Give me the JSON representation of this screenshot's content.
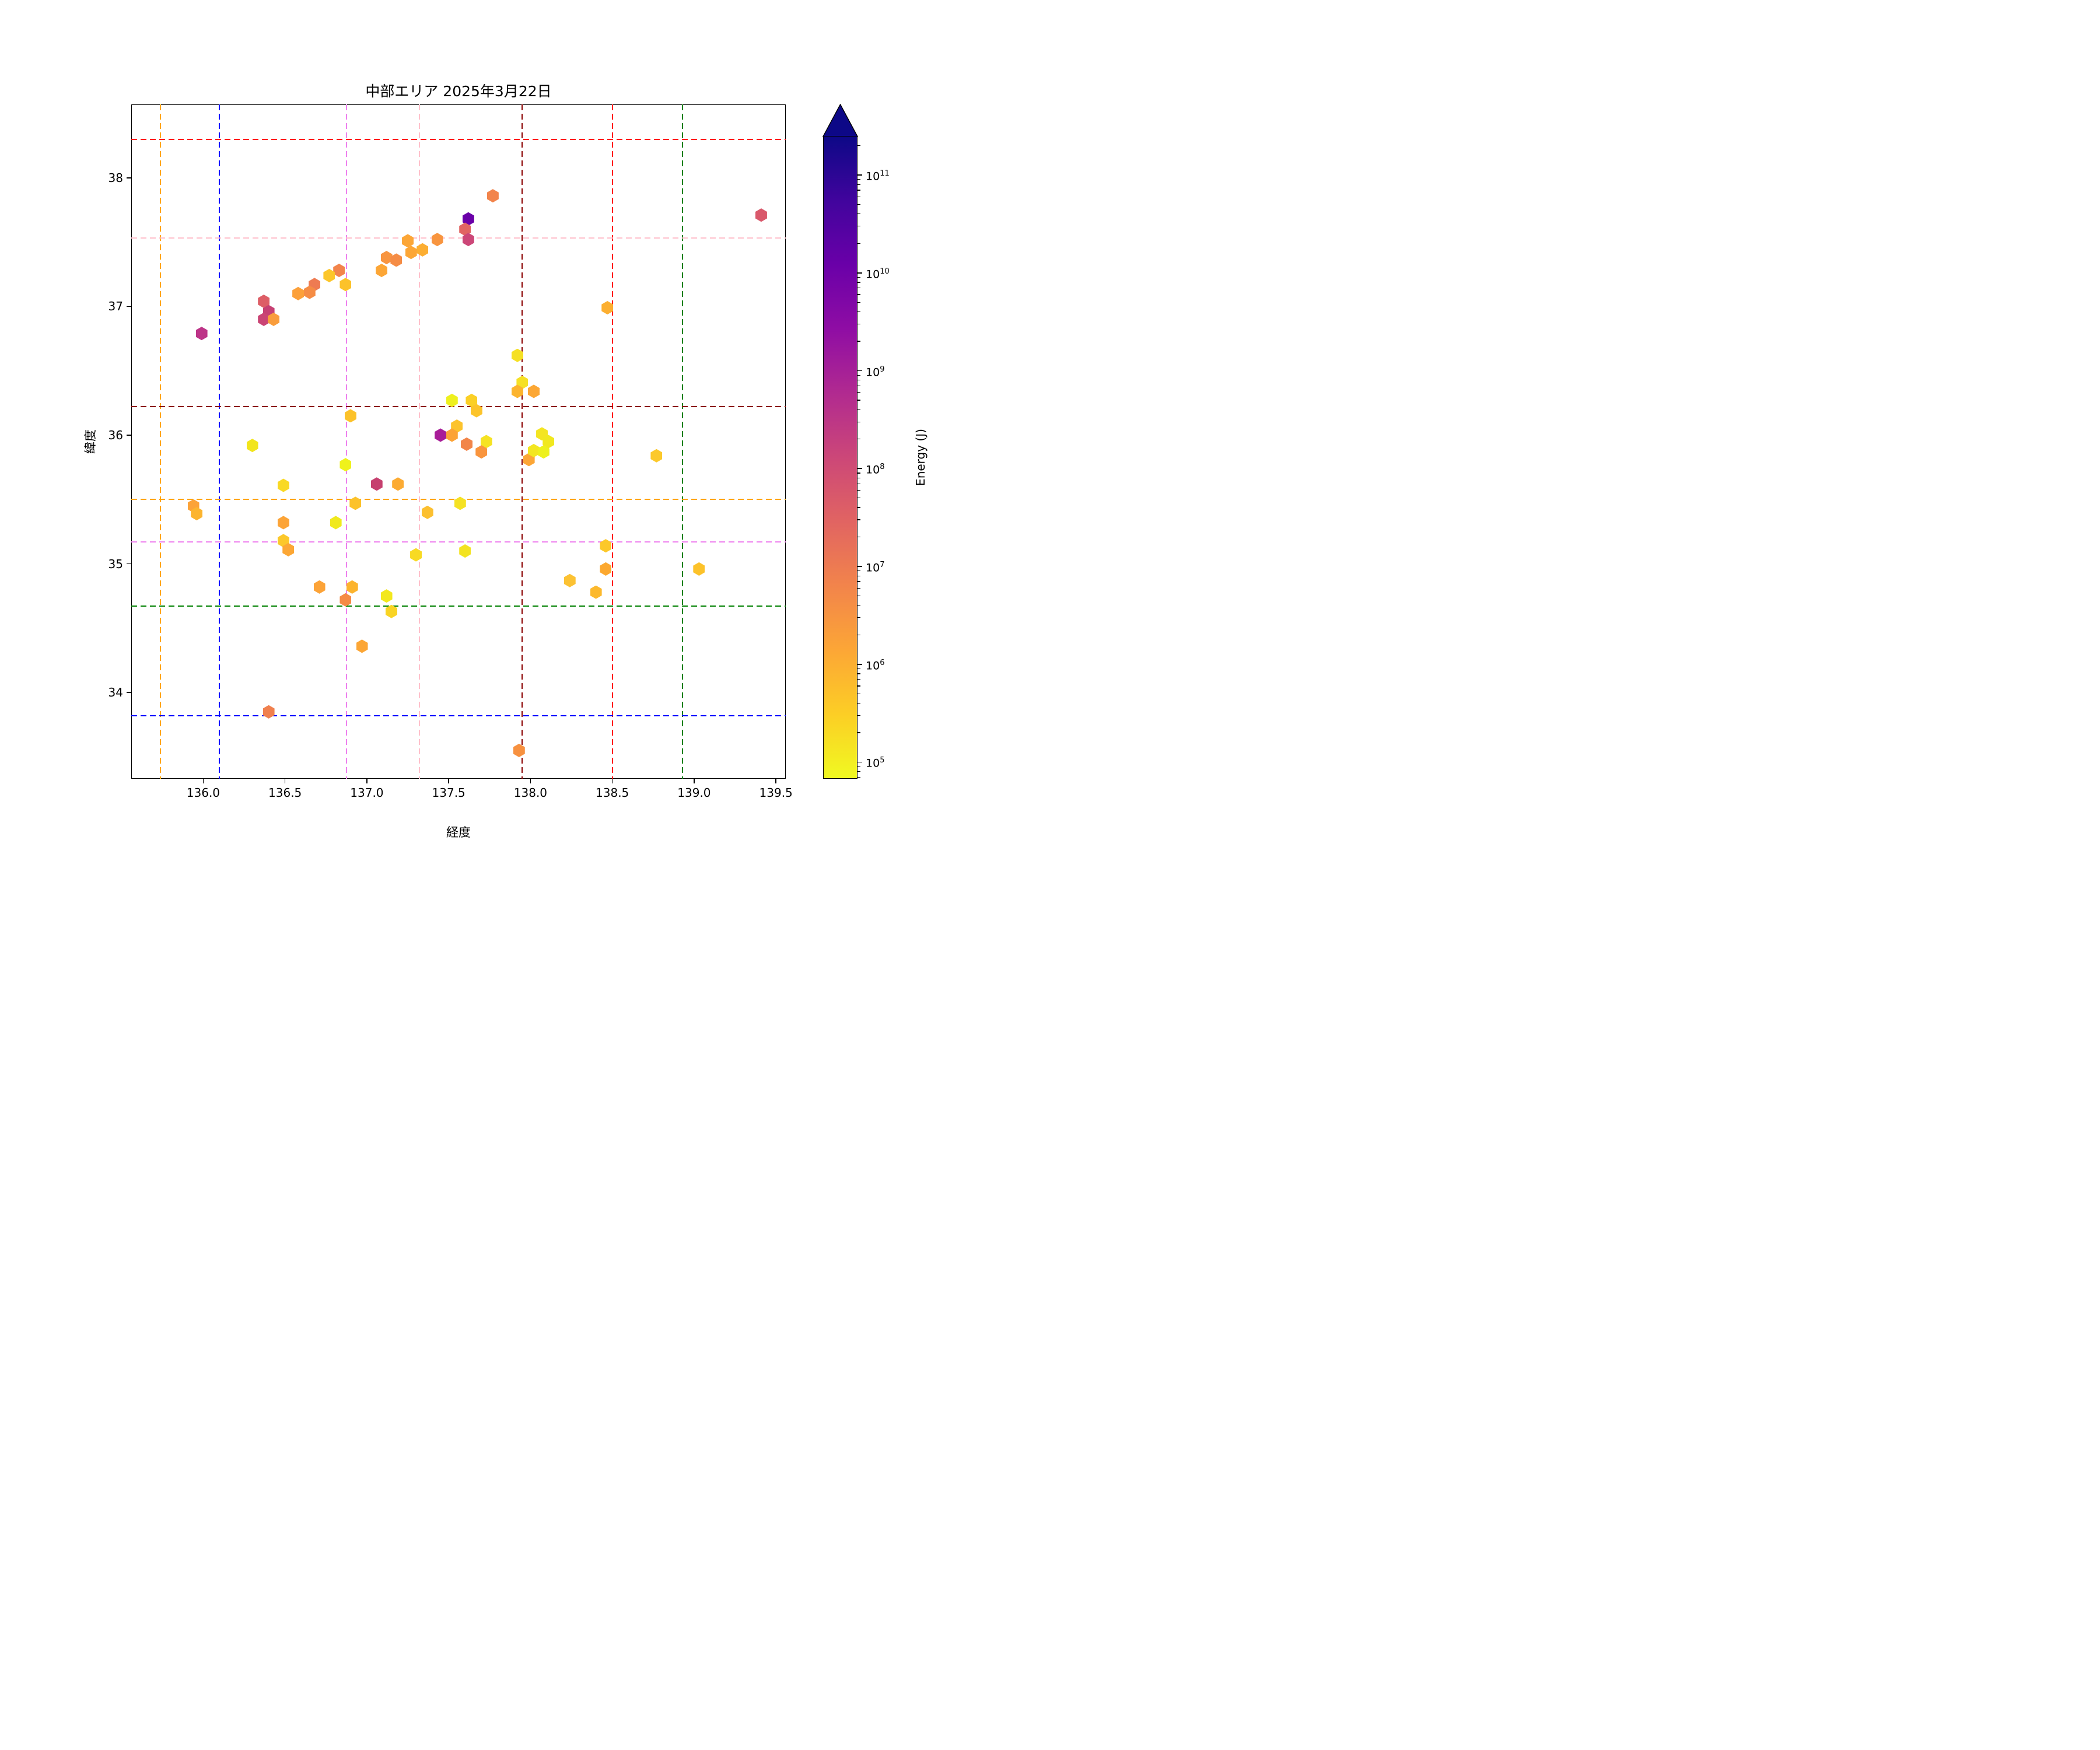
{
  "title": "中部エリア 2025年3月22日",
  "chart_data": {
    "type": "scatter",
    "marker": "hexagon",
    "title": "中部エリア 2025年3月22日",
    "xlabel": "経度",
    "ylabel": "緯度",
    "xlim": [
      135.56,
      139.56
    ],
    "ylim": [
      33.33,
      38.57
    ],
    "xticks": [
      "136.0",
      "136.5",
      "137.0",
      "137.5",
      "138.0",
      "138.5",
      "139.0",
      "139.5"
    ],
    "xtick_values": [
      136.0,
      136.5,
      137.0,
      137.5,
      138.0,
      138.5,
      139.0,
      139.5
    ],
    "yticks": [
      "34",
      "35",
      "36",
      "37",
      "38"
    ],
    "ytick_values": [
      34,
      35,
      36,
      37,
      38
    ],
    "grid": false,
    "colorbar": {
      "label": "Energy (J)",
      "scale": "log",
      "log_min": 4.83,
      "log_max": 11.4,
      "tick_exponents": [
        5,
        6,
        7,
        8,
        9,
        10,
        11
      ],
      "extend": "max",
      "colormap_name": "plasma_r (yellow = low, dark navy = high)",
      "colormap_stops_top_to_bottom": [
        "#0d0887",
        "#41049d",
        "#6a00a8",
        "#8f0da4",
        "#b12a90",
        "#cc4778",
        "#e16462",
        "#f2844b",
        "#fca636",
        "#fcce25",
        "#f0f921"
      ]
    },
    "reference_lines": {
      "style": "dashed",
      "vertical": [
        {
          "color": "orange",
          "hex": "#ffa500",
          "lon": 135.74
        },
        {
          "color": "blue",
          "hex": "#0000ff",
          "lon": 136.1
        },
        {
          "color": "violet",
          "hex": "#ee82ee",
          "lon": 136.875
        },
        {
          "color": "pink",
          "hex": "#ffc0cb",
          "lon": 137.32
        },
        {
          "color": "darkred",
          "hex": "#8b0000",
          "lon": 137.95
        },
        {
          "color": "red",
          "hex": "#ff0000",
          "lon": 138.5
        },
        {
          "color": "green",
          "hex": "#008000",
          "lon": 138.93
        }
      ],
      "horizontal": [
        {
          "color": "red",
          "hex": "#ff0000",
          "lat": 38.3
        },
        {
          "color": "pink",
          "hex": "#ffc0cb",
          "lat": 37.53
        },
        {
          "color": "darkred",
          "hex": "#8b0000",
          "lat": 36.22
        },
        {
          "color": "orange",
          "hex": "#ffa500",
          "lat": 35.5
        },
        {
          "color": "violet",
          "hex": "#ee82ee",
          "lat": 35.17
        },
        {
          "color": "green",
          "hex": "#008000",
          "lat": 34.67
        },
        {
          "color": "blue",
          "hex": "#0000ff",
          "lat": 33.82
        }
      ]
    },
    "points_format": [
      "longitude",
      "latitude",
      "marker_color",
      "energy_J"
    ],
    "points": [
      [
        137.77,
        37.86,
        "#f2844b",
        7000000.0
      ],
      [
        137.62,
        37.68,
        "#6a00a8",
        12000000000.0
      ],
      [
        137.6,
        37.6,
        "#e16462",
        30000000.0
      ],
      [
        137.62,
        37.52,
        "#cc4778",
        140000000.0
      ],
      [
        137.43,
        37.52,
        "#f8953f",
        3000000.0
      ],
      [
        137.25,
        37.51,
        "#fca636",
        1500000.0
      ],
      [
        137.34,
        37.44,
        "#fcae32",
        1000000.0
      ],
      [
        137.27,
        37.42,
        "#fca636",
        1500000.0
      ],
      [
        137.12,
        37.38,
        "#f89540",
        3000000.0
      ],
      [
        137.18,
        37.36,
        "#f58c45",
        5000000.0
      ],
      [
        137.09,
        37.28,
        "#fca636",
        1500000.0
      ],
      [
        136.83,
        37.28,
        "#f2844b",
        7000000.0
      ],
      [
        136.77,
        37.24,
        "#fcc62a",
        450000.0
      ],
      [
        136.87,
        37.17,
        "#fcc22a",
        500000.0
      ],
      [
        136.68,
        37.17,
        "#ee7b52",
        10000000.0
      ],
      [
        136.65,
        37.11,
        "#f58c45",
        5000000.0
      ],
      [
        136.58,
        37.1,
        "#fca03a",
        2000000.0
      ],
      [
        136.37,
        37.04,
        "#dd5e66",
        40000000.0
      ],
      [
        136.4,
        36.96,
        "#c64073",
        240000000.0
      ],
      [
        136.37,
        36.9,
        "#ca4474",
        200000000.0
      ],
      [
        136.43,
        36.9,
        "#f99d3c",
        2200000.0
      ],
      [
        135.99,
        36.79,
        "#bd3488",
        400000000.0
      ],
      [
        139.41,
        37.71,
        "#d9586b",
        55000000.0
      ],
      [
        138.47,
        36.99,
        "#fcaf31",
        900000.0
      ],
      [
        137.92,
        36.62,
        "#f5e024",
        200000.0
      ],
      [
        137.95,
        36.41,
        "#f6e125",
        190000.0
      ],
      [
        137.92,
        36.34,
        "#fcb42e",
        800000.0
      ],
      [
        138.02,
        36.34,
        "#fca734",
        1400000.0
      ],
      [
        137.52,
        36.27,
        "#eef01e",
        110000.0
      ],
      [
        137.64,
        36.27,
        "#fbd026",
        300000.0
      ],
      [
        137.67,
        36.19,
        "#fcc42b",
        460000.0
      ],
      [
        136.9,
        36.15,
        "#fcc22a",
        500000.0
      ],
      [
        137.55,
        36.07,
        "#fcc32c",
        480000.0
      ],
      [
        137.45,
        36.0,
        "#a81d98",
        1100000000.0
      ],
      [
        137.52,
        36.0,
        "#fca336",
        1700000.0
      ],
      [
        137.61,
        35.93,
        "#f28549",
        6500000.0
      ],
      [
        137.73,
        35.95,
        "#f6e322",
        180000.0
      ],
      [
        137.7,
        35.87,
        "#f9953e",
        2900000.0
      ],
      [
        137.99,
        35.81,
        "#fca636",
        1500000.0
      ],
      [
        138.07,
        36.01,
        "#f4e522",
        150000.0
      ],
      [
        138.11,
        35.95,
        "#f1e81f",
        120000.0
      ],
      [
        138.02,
        35.88,
        "#f3e621",
        140000.0
      ],
      [
        138.08,
        35.87,
        "#edf11d",
        100000.0
      ],
      [
        138.77,
        35.84,
        "#fcc92b",
        400000.0
      ],
      [
        136.3,
        35.92,
        "#f2e51c",
        125000.0
      ],
      [
        136.87,
        35.77,
        "#eff21c",
        95000.0
      ],
      [
        136.49,
        35.61,
        "#f9d924",
        240000.0
      ],
      [
        137.06,
        35.62,
        "#c6406f",
        250000000.0
      ],
      [
        137.19,
        35.62,
        "#fcab33",
        1100000.0
      ],
      [
        136.93,
        35.47,
        "#fcc22a",
        500000.0
      ],
      [
        135.94,
        35.45,
        "#fca338",
        1800000.0
      ],
      [
        135.96,
        35.39,
        "#fcb42e",
        800000.0
      ],
      [
        137.37,
        35.4,
        "#fcc030",
        550000.0
      ],
      [
        137.57,
        35.47,
        "#f5e223",
        170000.0
      ],
      [
        136.49,
        35.32,
        "#fca437",
        1600000.0
      ],
      [
        136.81,
        35.32,
        "#f0e91e",
        115000.0
      ],
      [
        136.49,
        35.18,
        "#fcc82a",
        420000.0
      ],
      [
        136.52,
        35.11,
        "#fca735",
        1350000.0
      ],
      [
        137.3,
        35.07,
        "#f8da23",
        230000.0
      ],
      [
        137.6,
        35.1,
        "#f3e321",
        160000.0
      ],
      [
        136.71,
        34.82,
        "#fca338",
        1700000.0
      ],
      [
        136.91,
        34.82,
        "#fcb42e",
        750000.0
      ],
      [
        136.87,
        34.72,
        "#f58a44",
        4000000.0
      ],
      [
        137.12,
        34.75,
        "#f3e81e",
        130000.0
      ],
      [
        137.15,
        34.63,
        "#f9d424",
        260000.0
      ],
      [
        136.97,
        34.36,
        "#fca635",
        1500000.0
      ],
      [
        136.4,
        33.85,
        "#f0804e",
        8000000.0
      ],
      [
        137.93,
        33.55,
        "#f79140",
        3500000.0
      ],
      [
        138.46,
        35.14,
        "#fcc82a",
        420000.0
      ],
      [
        138.46,
        34.96,
        "#fca82f",
        1300000.0
      ],
      [
        138.24,
        34.87,
        "#fcc233",
        500000.0
      ],
      [
        138.4,
        34.78,
        "#fcb92d",
        650000.0
      ],
      [
        139.03,
        34.96,
        "#fcc22a",
        500000.0
      ]
    ]
  }
}
